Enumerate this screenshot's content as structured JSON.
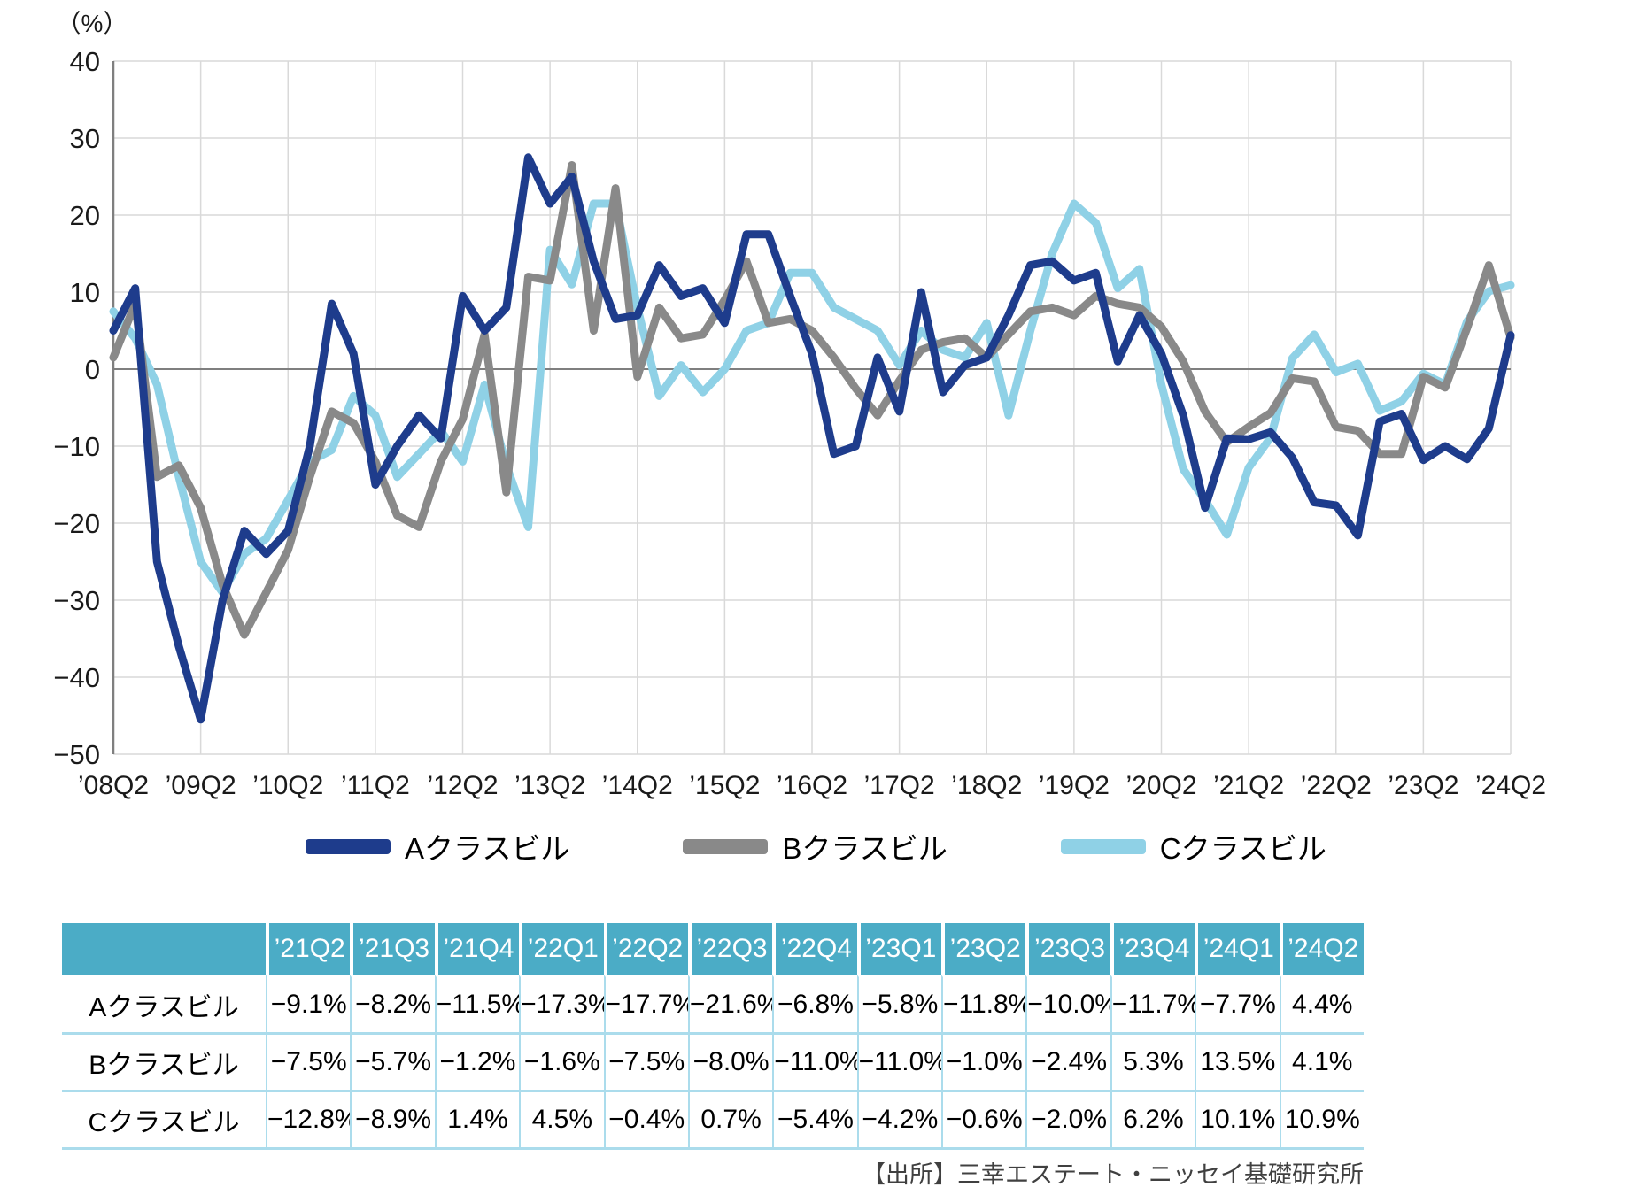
{
  "chart": {
    "unit_label": "（%）",
    "y_ticks": [
      40,
      30,
      20,
      10,
      0,
      -10,
      -20,
      -30,
      -40,
      -50
    ],
    "x_tick_labels": [
      "’08Q2",
      "’09Q2",
      "’10Q2",
      "’11Q2",
      "’12Q2",
      "’13Q2",
      "’14Q2",
      "’15Q2",
      "’16Q2",
      "’17Q2",
      "’18Q2",
      "’19Q2",
      "’20Q2",
      "’21Q2",
      "’22Q2",
      "’23Q2",
      "’24Q2"
    ],
    "grid_color": "#d9d9d9",
    "axis_color": "#7f7f7f",
    "tick_label_color": "#1a1a1a"
  },
  "chart_data": {
    "type": "line",
    "title": "",
    "xlabel": "",
    "ylabel": "（%）",
    "ylim": [
      -50,
      40
    ],
    "grid": true,
    "legend_position": "bottom",
    "x": [
      "’08Q2",
      "’08Q3",
      "’08Q4",
      "’09Q1",
      "’09Q2",
      "’09Q3",
      "’09Q4",
      "’10Q1",
      "’10Q2",
      "’10Q3",
      "’10Q4",
      "’11Q1",
      "’11Q2",
      "’11Q3",
      "’11Q4",
      "’12Q1",
      "’12Q2",
      "’12Q3",
      "’12Q4",
      "’13Q1",
      "’13Q2",
      "’13Q3",
      "’13Q4",
      "’14Q1",
      "’14Q2",
      "’14Q3",
      "’14Q4",
      "’15Q1",
      "’15Q2",
      "’15Q3",
      "’15Q4",
      "’16Q1",
      "’16Q2",
      "’16Q3",
      "’16Q4",
      "’17Q1",
      "’17Q2",
      "’17Q3",
      "’17Q4",
      "’18Q1",
      "’18Q2",
      "’18Q3",
      "’18Q4",
      "’19Q1",
      "’19Q2",
      "’19Q3",
      "’19Q4",
      "’20Q1",
      "’20Q2",
      "’20Q3",
      "’20Q4",
      "’21Q1",
      "’21Q2",
      "’21Q3",
      "’21Q4",
      "’22Q1",
      "’22Q2",
      "’22Q3",
      "’22Q4",
      "’23Q1",
      "’23Q2",
      "’23Q3",
      "’23Q4",
      "’24Q1",
      "’24Q2"
    ],
    "series": [
      {
        "name": "Aクラスビル",
        "color": "#1e3c8c",
        "values": [
          5.0,
          10.5,
          -25.0,
          -36.0,
          -45.5,
          -30.0,
          -21.0,
          -24.0,
          -21.0,
          -10.0,
          8.5,
          2.0,
          -15.0,
          -10.0,
          -6.0,
          -9.0,
          9.5,
          5.0,
          8.0,
          27.5,
          21.5,
          25.0,
          14.0,
          6.5,
          7.0,
          13.5,
          9.5,
          10.5,
          6.0,
          17.5,
          17.5,
          9.5,
          2.0,
          -11.0,
          -10.0,
          1.5,
          -5.5,
          10.0,
          -3.0,
          0.5,
          1.5,
          7.0,
          13.5,
          14.0,
          11.5,
          12.5,
          1.0,
          7.0,
          2.0,
          -6.0,
          -18.0,
          -9.0,
          -9.1,
          -8.2,
          -11.5,
          -17.3,
          -17.7,
          -21.6,
          -6.8,
          -5.8,
          -11.8,
          -10.0,
          -11.7,
          -7.7,
          4.4
        ]
      },
      {
        "name": "Bクラスビル",
        "color": "#898989",
        "values": [
          1.5,
          8.5,
          -14.0,
          -12.5,
          -18.0,
          -28.0,
          -34.5,
          -29.0,
          -23.5,
          -14.0,
          -5.5,
          -7.0,
          -12.0,
          -19.0,
          -20.5,
          -12.0,
          -6.5,
          4.5,
          -16.0,
          12.0,
          11.5,
          26.5,
          5.0,
          23.5,
          -1.0,
          8.0,
          4.0,
          4.5,
          9.0,
          14.0,
          6.0,
          6.5,
          5.0,
          1.5,
          -2.5,
          -6.0,
          -1.5,
          2.5,
          3.5,
          4.0,
          1.5,
          4.5,
          7.5,
          8.0,
          7.0,
          9.5,
          8.5,
          8.0,
          5.5,
          1.0,
          -5.5,
          -9.5,
          -7.5,
          -5.7,
          -1.2,
          -1.6,
          -7.5,
          -8.0,
          -11.0,
          -11.0,
          -1.0,
          -2.4,
          5.3,
          13.5,
          4.1
        ]
      },
      {
        "name": "Cクラスビル",
        "color": "#8fd1e6",
        "values": [
          7.5,
          4.0,
          -2.0,
          -14.0,
          -25.0,
          -29.0,
          -24.0,
          -22.0,
          -17.0,
          -12.0,
          -10.5,
          -3.5,
          -6.0,
          -14.0,
          -11.0,
          -8.0,
          -12.0,
          -2.0,
          -12.5,
          -20.5,
          15.5,
          11.0,
          21.5,
          21.5,
          8.0,
          -3.5,
          0.5,
          -3.0,
          0.0,
          5.0,
          6.0,
          12.5,
          12.5,
          8.0,
          6.5,
          5.0,
          0.5,
          5.0,
          2.5,
          1.5,
          6.0,
          -6.0,
          5.0,
          15.0,
          21.5,
          19.0,
          10.5,
          13.0,
          -2.0,
          -13.0,
          -17.0,
          -21.5,
          -12.8,
          -8.9,
          1.4,
          4.5,
          -0.4,
          0.7,
          -5.4,
          -4.2,
          -0.6,
          -2.0,
          6.2,
          10.1,
          10.9
        ]
      }
    ]
  },
  "legend": {
    "items": [
      {
        "label": "Aクラスビル",
        "color": "#1e3c8c"
      },
      {
        "label": "Bクラスビル",
        "color": "#898989"
      },
      {
        "label": "Cクラスビル",
        "color": "#8fd1e6"
      }
    ]
  },
  "table": {
    "header_bg": "#4bacc6",
    "header": [
      "",
      "’21Q2",
      "’21Q3",
      "’21Q4",
      "’22Q1",
      "’22Q2",
      "’22Q3",
      "’22Q4",
      "’23Q1",
      "’23Q2",
      "’23Q3",
      "’23Q4",
      "’24Q1",
      "’24Q2"
    ],
    "rows": [
      {
        "label": "Aクラスビル",
        "values": [
          "−9.1%",
          "−8.2%",
          "−11.5%",
          "−17.3%",
          "−17.7%",
          "−21.6%",
          "−6.8%",
          "−5.8%",
          "−11.8%",
          "−10.0%",
          "−11.7%",
          "−7.7%",
          "4.4%"
        ]
      },
      {
        "label": "Bクラスビル",
        "values": [
          "−7.5%",
          "−5.7%",
          "−1.2%",
          "−1.6%",
          "−7.5%",
          "−8.0%",
          "−11.0%",
          "−11.0%",
          "−1.0%",
          "−2.4%",
          "5.3%",
          "13.5%",
          "4.1%"
        ]
      },
      {
        "label": "Cクラスビル",
        "values": [
          "−12.8%",
          "−8.9%",
          "1.4%",
          "4.5%",
          "−0.4%",
          "0.7%",
          "−5.4%",
          "−4.2%",
          "−0.6%",
          "−2.0%",
          "6.2%",
          "10.1%",
          "10.9%"
        ]
      }
    ]
  },
  "source": "【出所】三幸エステート・ニッセイ基礎研究所"
}
